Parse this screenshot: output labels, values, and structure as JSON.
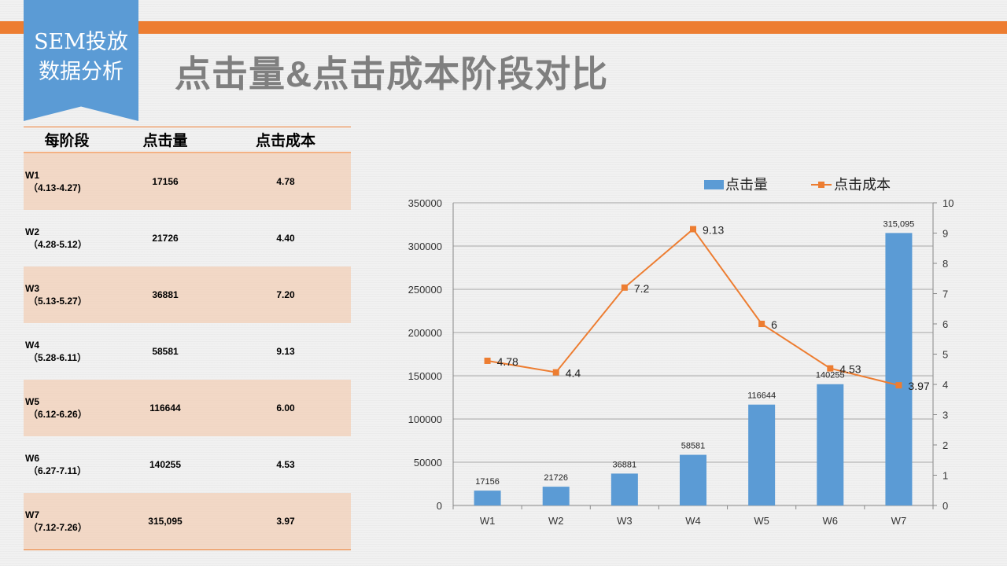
{
  "badge": {
    "line1": "SEM投放",
    "line2": "数据分析"
  },
  "title": "点击量&点击成本阶段对比",
  "table": {
    "headers": [
      "每阶段",
      "点击量",
      "点击成本"
    ],
    "rows": [
      {
        "week": "W1",
        "range": "（4.13-4.27)",
        "clicks": "17156",
        "cost": "4.78"
      },
      {
        "week": "W2",
        "range": "（4.28-5.12）",
        "clicks": "21726",
        "cost": "4.40"
      },
      {
        "week": "W3",
        "range": "（5.13-5.27）",
        "clicks": "36881",
        "cost": "7.20"
      },
      {
        "week": "W4",
        "range": "（5.28-6.11）",
        "clicks": "58581",
        "cost": "9.13"
      },
      {
        "week": "W5",
        "range": "（6.12-6.26）",
        "clicks": "116644",
        "cost": "6.00"
      },
      {
        "week": "W6",
        "range": "（6.27-7.11）",
        "clicks": "140255",
        "cost": "4.53"
      },
      {
        "week": "W7",
        "range": "（7.12-7.26）",
        "clicks": "315,095",
        "cost": "3.97"
      }
    ]
  },
  "chart_data": {
    "type": "bar+line",
    "categories": [
      "W1",
      "W2",
      "W3",
      "W4",
      "W5",
      "W6",
      "W7"
    ],
    "series": [
      {
        "name": "点击量",
        "type": "bar",
        "axis": "left",
        "color": "#5b9bd5",
        "values": [
          17156,
          21726,
          36881,
          58581,
          116644,
          140255,
          315095
        ],
        "labels": [
          "17156",
          "21726",
          "36881",
          "58581",
          "116644",
          "140255",
          "315,095"
        ]
      },
      {
        "name": "点击成本",
        "type": "line",
        "axis": "right",
        "color": "#ed7d31",
        "values": [
          4.78,
          4.4,
          7.2,
          9.13,
          6,
          4.53,
          3.97
        ],
        "labels": [
          "4.78",
          "4.4",
          "7.2",
          "9.13",
          "6",
          "4.53",
          "3.97"
        ]
      }
    ],
    "ylim": [
      0,
      350000
    ],
    "yticks": [
      "0",
      "50000",
      "100000",
      "150000",
      "200000",
      "250000",
      "300000",
      "350000"
    ],
    "y2lim": [
      0,
      10
    ],
    "y2ticks": [
      "0",
      "1",
      "2",
      "3",
      "4",
      "5",
      "6",
      "7",
      "8",
      "9",
      "10"
    ],
    "legend": "top-right",
    "grid": true
  }
}
